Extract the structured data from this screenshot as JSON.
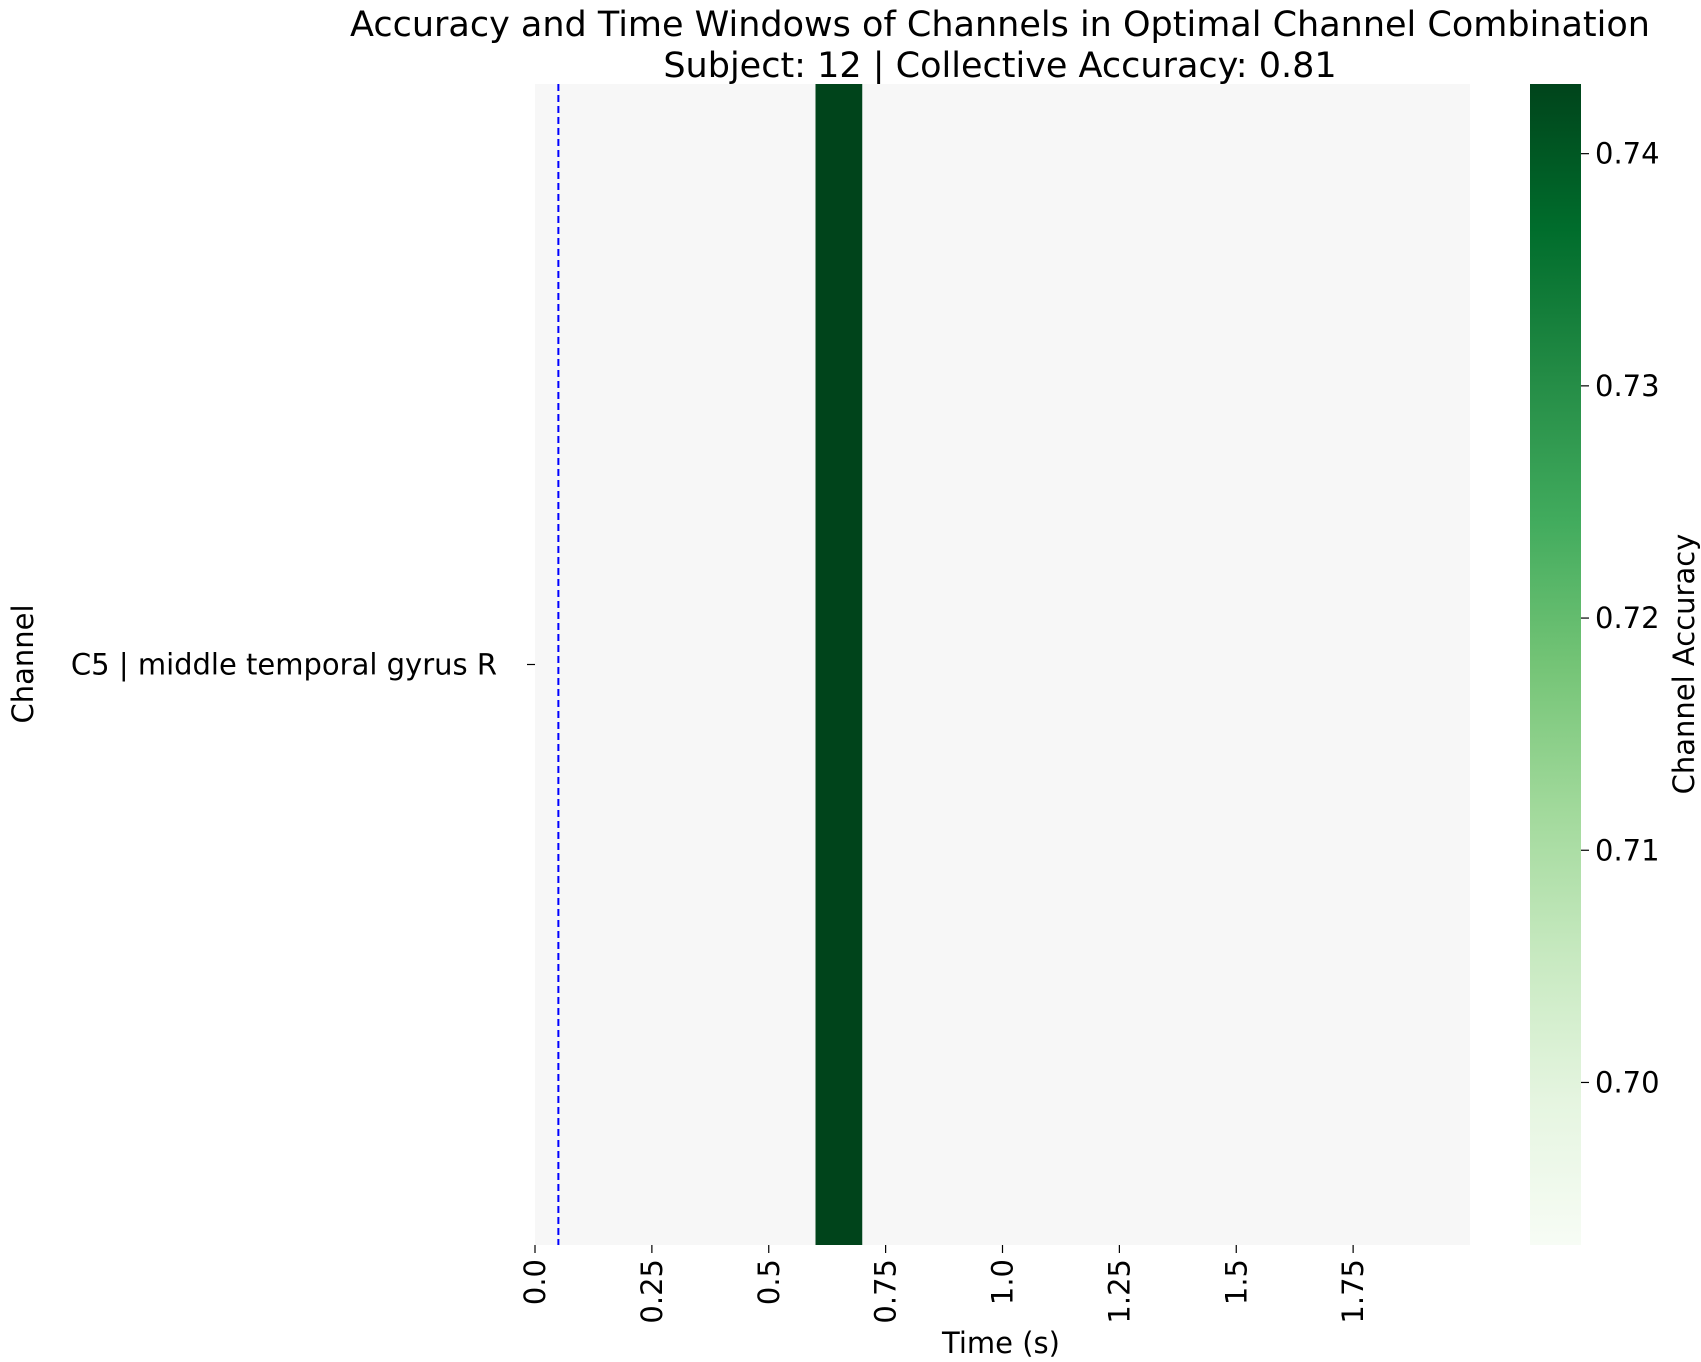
{
  "chart_data": {
    "type": "heatmap",
    "title": "Accuracy and Time Windows of Channels in Optimal Channel Combination",
    "subtitle": "Subject: 12 | Collective Accuracy: 0.81",
    "xlabel": "Time (s)",
    "ylabel": "Channel",
    "colorbar_label": "Channel Accuracy",
    "colormap": "Greens",
    "rows": [
      "C5 | middle temporal gyrus R"
    ],
    "x_range": [
      0,
      2.0
    ],
    "x_ticks": [
      0,
      0.25,
      0.5,
      0.75,
      1.0,
      1.25,
      1.5,
      1.75
    ],
    "x_tick_labels": [
      "0.0",
      "0.25",
      "0.5",
      "0.75",
      "1.0",
      "1.25",
      "1.5",
      "1.75"
    ],
    "cells": [
      {
        "row": "C5 | middle temporal gyrus R",
        "t_start": 0.6,
        "t_end": 0.7,
        "value": 0.743
      }
    ],
    "background_value": 0.693,
    "reference_line": {
      "x": 0.05,
      "color": "#0000ff",
      "style": "dashed"
    },
    "colorbar_range": [
      0.693,
      0.743
    ],
    "colorbar_ticks": [
      0.7,
      0.71,
      0.72,
      0.73,
      0.74
    ],
    "colorbar_tick_labels": [
      "0.70",
      "0.71",
      "0.72",
      "0.73",
      "0.74"
    ],
    "grid": false
  },
  "colors": {
    "background_cell": "#f7f7f7",
    "high_cell": "#00441b",
    "reference_line": "#0000ff"
  }
}
